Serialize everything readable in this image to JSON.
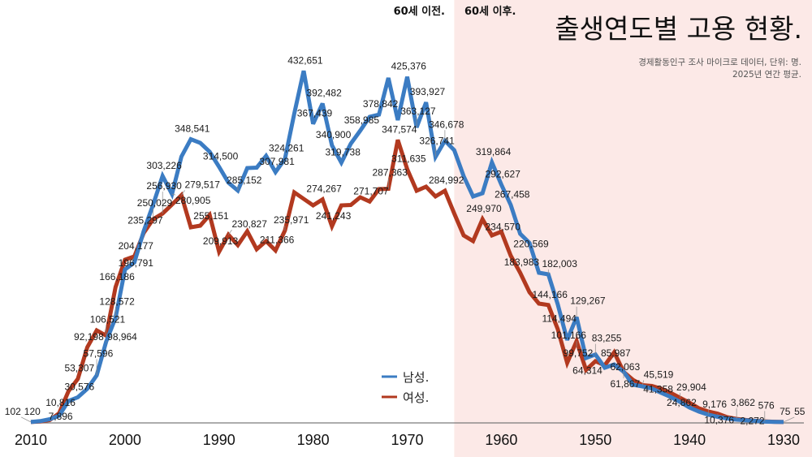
{
  "header": {
    "title": "출생연도별 고용 현황.",
    "subtitle_lines": [
      "경제활동인구 조사 마이크로 데이터, 단위: 명.",
      "2025년 연간 평균."
    ]
  },
  "regions": {
    "before_label": "60세 이전.",
    "after_label": "60세 이후.",
    "boundary_year": 1965,
    "after_color": "#fce9e7"
  },
  "colors": {
    "axis": "#7a7a7a",
    "label_text": "#1a1a1a"
  },
  "chart_data": {
    "type": "line",
    "title": "출생연도별 고용 현황.",
    "subtitle": "경제활동인구 조사 마이크로 데이터, 단위: 명. 2025년 연간 평균.",
    "xlabel": "",
    "ylabel": "",
    "xlim": [
      2010,
      1930
    ],
    "ylim": [
      0,
      520000
    ],
    "grid": false,
    "legend_position": "bottom-center",
    "x_ticks": [
      2010,
      2000,
      1990,
      1980,
      1970,
      1960,
      1950,
      1940,
      1930
    ],
    "x": [
      2010,
      2009,
      2008,
      2007,
      2006,
      2005,
      2004,
      2003,
      2002,
      2001,
      2000,
      1999,
      1998,
      1997,
      1996,
      1995,
      1994,
      1993,
      1992,
      1991,
      1990,
      1989,
      1988,
      1987,
      1986,
      1985,
      1984,
      1983,
      1982,
      1981,
      1980,
      1979,
      1978,
      1977,
      1976,
      1975,
      1974,
      1973,
      1972,
      1971,
      1970,
      1969,
      1968,
      1967,
      1966,
      1965,
      1964,
      1963,
      1962,
      1961,
      1960,
      1959,
      1958,
      1957,
      1956,
      1955,
      1954,
      1953,
      1952,
      1951,
      1950,
      1949,
      1948,
      1947,
      1946,
      1945,
      1944,
      1943,
      1942,
      1941,
      1940,
      1939,
      1938,
      1937,
      1936,
      1935,
      1934,
      1933,
      1932,
      1931,
      1930
    ],
    "series": [
      {
        "id": "male",
        "name": "남성.",
        "color": "#3b7cc3",
        "values": [
          102,
          1200,
          3500,
          7896,
          26000,
          30576,
          41000,
          57596,
          98964,
          128572,
          188000,
          196791,
          235297,
          268000,
          303226,
          280905,
          327000,
          348541,
          344000,
          333000,
          314500,
          295000,
          285152,
          313000,
          313500,
          328000,
          307981,
          324261,
          380000,
          432651,
          367439,
          392482,
          340900,
          319738,
          343000,
          358985,
          376000,
          378842,
          424000,
          372000,
          425376,
          363127,
          393927,
          326741,
          346678,
          335000,
          303000,
          278000,
          282000,
          319864,
          292627,
          267458,
          232000,
          220569,
          184000,
          182003,
          145000,
          101166,
          129267,
          79000,
          83255,
          67000,
          71000,
          62063,
          46000,
          44000,
          41358,
          36000,
          31000,
          24862,
          18000,
          13000,
          9176,
          6500,
          4500,
          3000,
          2272,
          1500,
          576,
          300,
          55
        ],
        "labeled_x": [
          2010,
          2007,
          2005,
          2003,
          2002,
          2001,
          1999,
          1998,
          1996,
          1995,
          1993,
          1990,
          1988,
          1984,
          1983,
          1981,
          1980,
          1979,
          1978,
          1977,
          1975,
          1973,
          1970,
          1969,
          1968,
          1967,
          1966,
          1961,
          1960,
          1959,
          1957,
          1955,
          1953,
          1952,
          1950,
          1947,
          1944,
          1941,
          1938,
          1934,
          1932,
          1930
        ]
      },
      {
        "id": "female",
        "name": "여성.",
        "color": "#b2391f",
        "values": [
          120,
          800,
          2500,
          10816,
          38000,
          53307,
          92198,
          113000,
          106521,
          166186,
          200000,
          204177,
          233000,
          250029,
          256930,
          268000,
          279517,
          240000,
          242000,
          255151,
          209913,
          230827,
          218000,
          235000,
          213000,
          223000,
          211366,
          235971,
          283000,
          275000,
          267000,
          274267,
          241243,
          267000,
          267500,
          277000,
          271707,
          287000,
          287363,
          347574,
          311635,
          285000,
          290000,
          278000,
          284992,
          257000,
          230000,
          223000,
          249970,
          230000,
          234570,
          205000,
          183983,
          160000,
          146000,
          144166,
          114494,
          73000,
          99752,
          64314,
          75000,
          70000,
          85987,
          61867,
          52000,
          45519,
          44500,
          41000,
          36000,
          29904,
          24000,
          17000,
          13000,
          10376,
          6000,
          3862,
          2600,
          1600,
          900,
          400,
          75
        ],
        "labeled_x": [
          2010,
          2007,
          2005,
          2004,
          2002,
          2001,
          1999,
          1997,
          1996,
          1994,
          1991,
          1990,
          1989,
          1984,
          1983,
          1979,
          1978,
          1974,
          1972,
          1971,
          1970,
          1966,
          1962,
          1960,
          1958,
          1955,
          1954,
          1952,
          1951,
          1948,
          1947,
          1945,
          1941,
          1937,
          1935,
          1930
        ]
      }
    ]
  }
}
